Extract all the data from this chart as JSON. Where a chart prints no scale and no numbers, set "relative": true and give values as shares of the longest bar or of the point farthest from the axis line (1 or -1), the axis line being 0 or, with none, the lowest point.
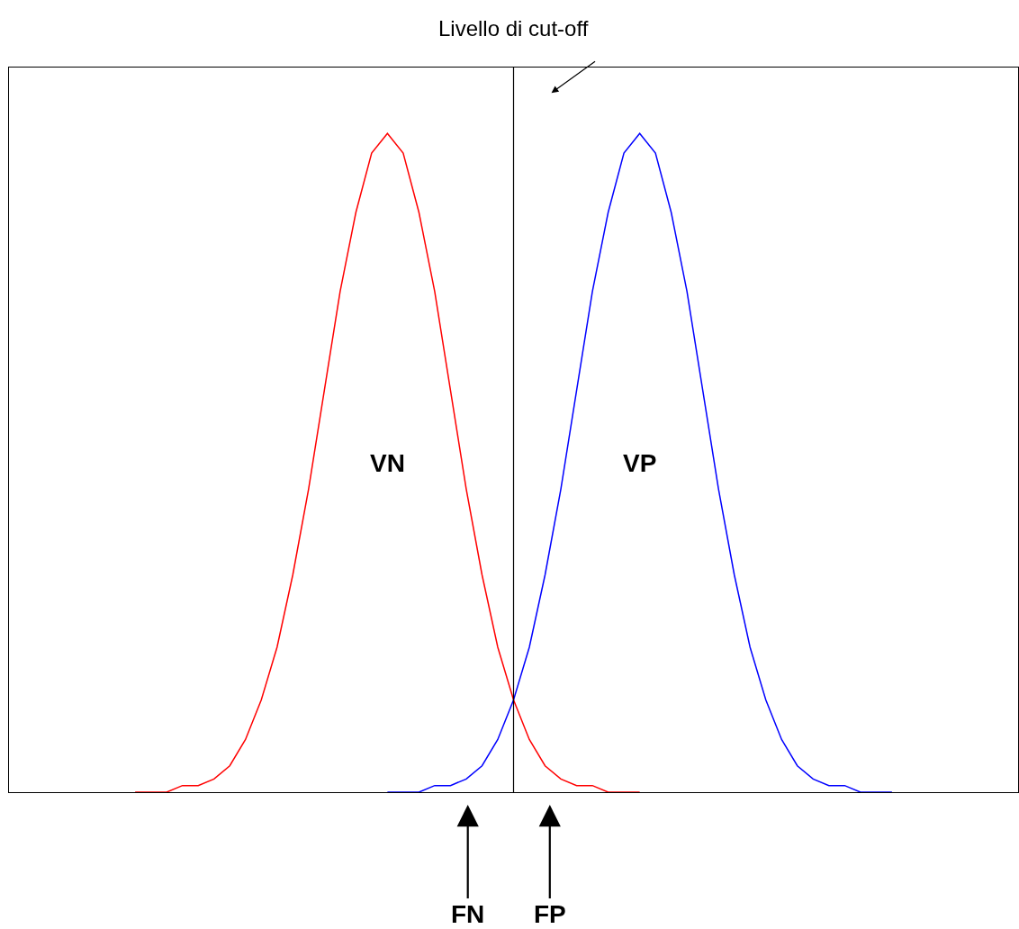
{
  "chart_data": {
    "type": "line",
    "relative": true,
    "categories": [
      null,
      null,
      null,
      null,
      null,
      null,
      null,
      null,
      null,
      null,
      null,
      null,
      null,
      null,
      null,
      null,
      null,
      null,
      null,
      null,
      null,
      null,
      null,
      null,
      null,
      null,
      null,
      null,
      null,
      null,
      null,
      null,
      null,
      null,
      null,
      null,
      null,
      null,
      null,
      null,
      null,
      null,
      null,
      null,
      null,
      null,
      null,
      null,
      null,
      null,
      null,
      null,
      null,
      null,
      null,
      null,
      null,
      null,
      null,
      null,
      null,
      null,
      null,
      null,
      null
    ],
    "series": [
      {
        "color": "#ff0000",
        "values": [
          null,
          null,
          null,
          null,
          null,
          null,
          null,
          null,
          0,
          0,
          0,
          0.01,
          0.01,
          0.02,
          0.04,
          0.08,
          0.14,
          0.22,
          0.33,
          0.46,
          0.61,
          0.76,
          0.88,
          0.97,
          1,
          0.97,
          0.88,
          0.76,
          0.61,
          0.46,
          0.33,
          0.22,
          0.14,
          0.08,
          0.04,
          0.02,
          0.01,
          0.01,
          0,
          0,
          0,
          null,
          null,
          null,
          null,
          null,
          null,
          null,
          null,
          null,
          null,
          null,
          null,
          null,
          null,
          null,
          null,
          null,
          null,
          null,
          null,
          null,
          null,
          null,
          null
        ]
      },
      {
        "color": "#0000ff",
        "values": [
          null,
          null,
          null,
          null,
          null,
          null,
          null,
          null,
          null,
          null,
          null,
          null,
          null,
          null,
          null,
          null,
          null,
          null,
          null,
          null,
          null,
          null,
          null,
          null,
          0,
          0,
          0,
          0.01,
          0.01,
          0.02,
          0.04,
          0.08,
          0.14,
          0.22,
          0.33,
          0.46,
          0.61,
          0.76,
          0.88,
          0.97,
          1,
          0.97,
          0.88,
          0.76,
          0.61,
          0.46,
          0.33,
          0.22,
          0.14,
          0.08,
          0.04,
          0.02,
          0.01,
          0.01,
          0,
          0,
          0,
          null,
          null,
          null,
          null,
          null,
          null,
          null,
          null
        ]
      }
    ],
    "annotations": [
      "Livello di cut-off",
      "VN",
      "VP",
      "FN",
      "FP"
    ],
    "marker": "none",
    "line_style": "solid"
  }
}
